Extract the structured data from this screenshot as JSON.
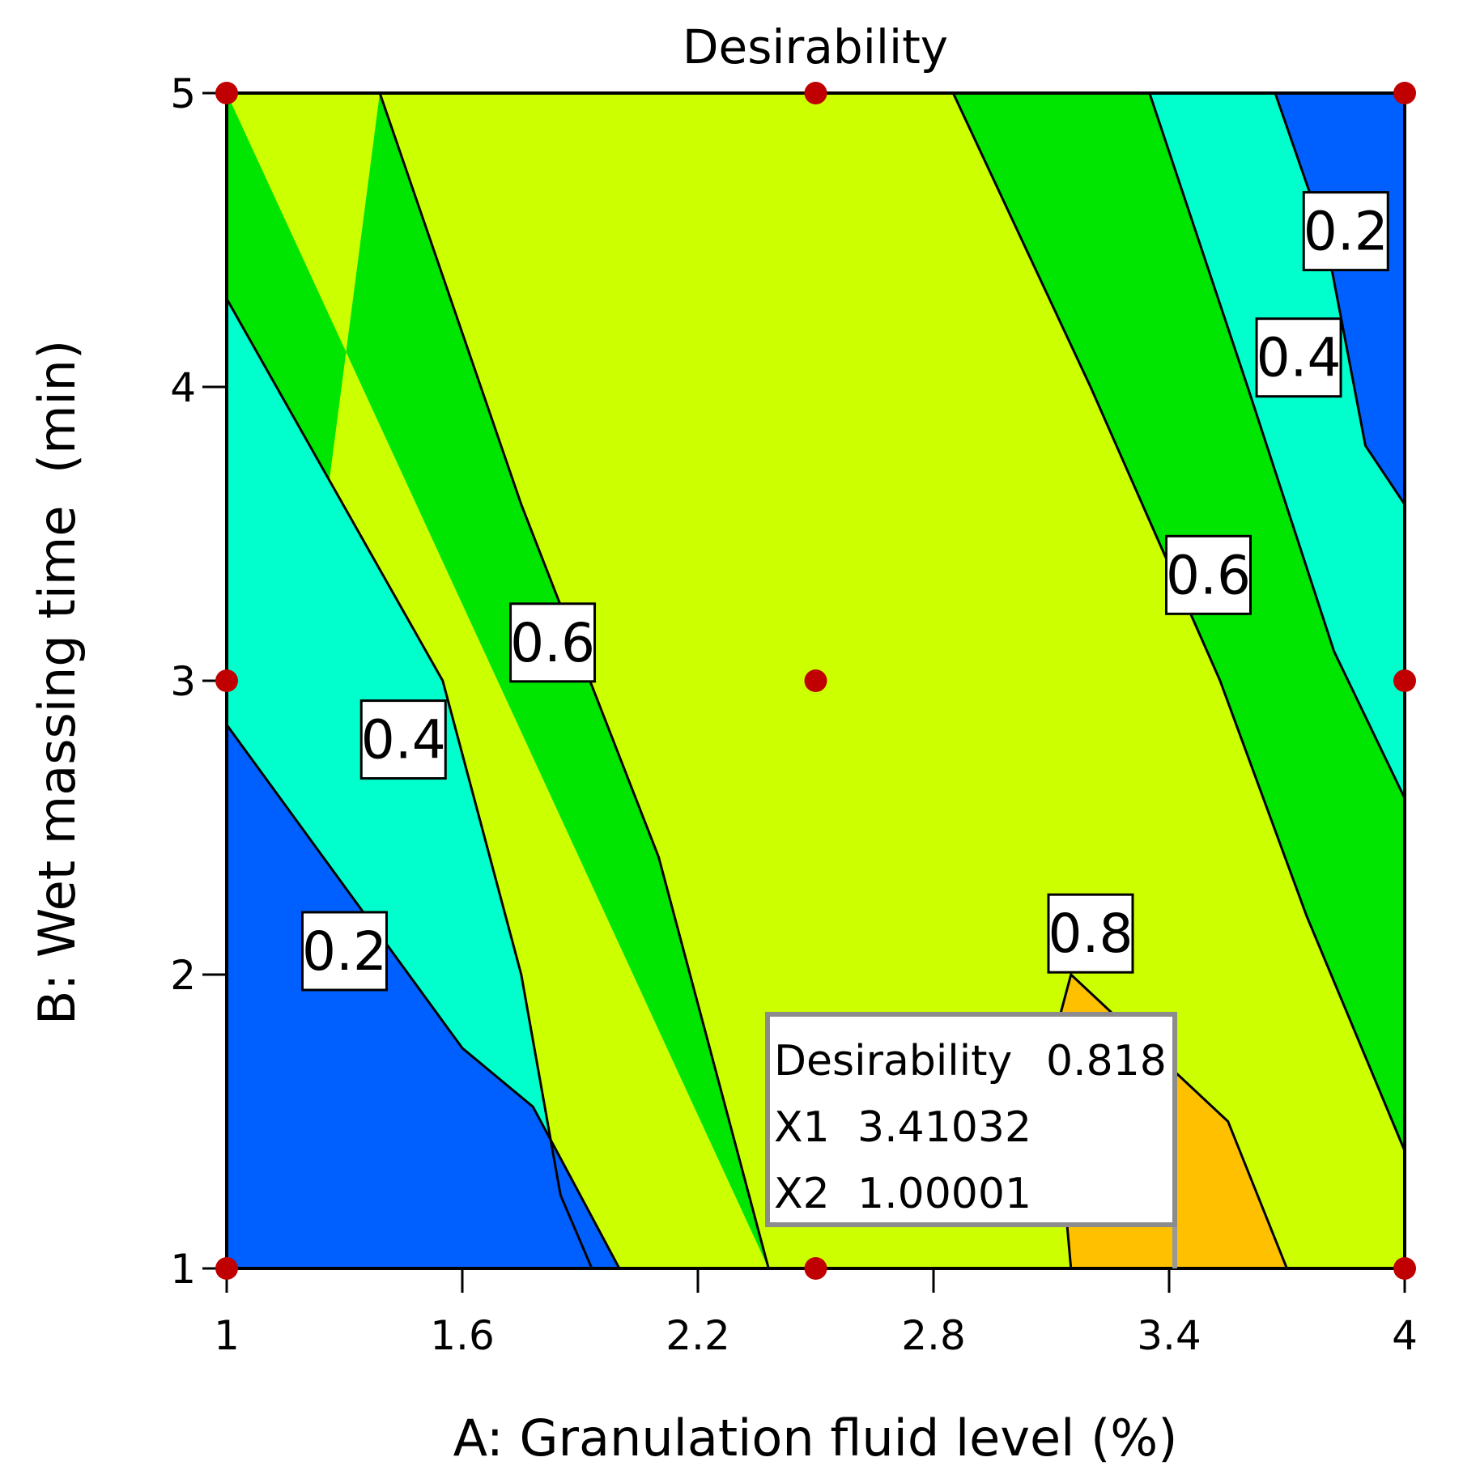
{
  "chart_data": {
    "type": "contour",
    "title": "Desirability",
    "xlabel": "A: Granulation fluid level (%)",
    "ylabel": "B: Wet massing time  (min)",
    "xlim": [
      1,
      4
    ],
    "ylim": [
      1,
      5
    ],
    "x_ticks": [
      1,
      1.6,
      2.2,
      2.8,
      3.4,
      4
    ],
    "x_tick_labels": [
      "1",
      "1.6",
      "2.2",
      "2.8",
      "3.4",
      "4"
    ],
    "y_ticks": [
      1,
      2,
      3,
      4,
      5
    ],
    "y_tick_labels": [
      "1",
      "2",
      "3",
      "4",
      "5"
    ],
    "colors": {
      "lt_0.2": "#0060ff",
      "0.2_0.4": "#00ffcc",
      "0.4_0.6": "#00e600",
      "0.6_0.8": "#ccff00",
      "gt_0.8": "#ffc000",
      "design_point": "#c00000"
    },
    "contours": [
      {
        "level": 0.2,
        "label": "0.2",
        "points": [
          [
            1,
            2.85
          ],
          [
            1.6,
            1.75
          ],
          [
            1.78,
            1.55
          ],
          [
            2.0,
            1.0
          ]
        ]
      },
      {
        "level": 0.4,
        "label": "0.4",
        "points": [
          [
            1,
            4.3
          ],
          [
            1.55,
            3.0
          ],
          [
            1.75,
            2.0
          ],
          [
            1.85,
            1.25
          ],
          [
            1.93,
            1.0
          ]
        ]
      },
      {
        "level": 0.6,
        "label": "0.6",
        "points": [
          [
            1.39,
            5.0
          ],
          [
            1.75,
            3.6
          ],
          [
            2.1,
            2.4
          ],
          [
            2.38,
            1.0
          ]
        ]
      },
      {
        "level": 0.6,
        "label": "0.6",
        "points": [
          [
            2.85,
            5.0
          ],
          [
            3.2,
            4.0
          ],
          [
            3.53,
            3.0
          ],
          [
            3.75,
            2.2
          ],
          [
            4.0,
            1.4
          ]
        ]
      },
      {
        "level": 0.4,
        "label": "0.4",
        "points": [
          [
            3.35,
            5.0
          ],
          [
            3.6,
            4.0
          ],
          [
            3.82,
            3.1
          ],
          [
            4.0,
            2.6
          ]
        ]
      },
      {
        "level": 0.2,
        "label": "0.2",
        "points": [
          [
            3.67,
            5.0
          ],
          [
            3.8,
            4.5
          ],
          [
            3.9,
            3.8
          ],
          [
            4.0,
            3.6
          ]
        ]
      },
      {
        "level": 0.8,
        "label": "0.8",
        "points": [
          [
            3.15,
            1.0
          ],
          [
            3.1,
            1.75
          ],
          [
            3.15,
            2.0
          ],
          [
            3.55,
            1.5
          ],
          [
            3.7,
            1.0
          ]
        ]
      }
    ],
    "contour_labels": [
      {
        "text": "0.2",
        "x": 1.3,
        "y": 2.08
      },
      {
        "text": "0.4",
        "x": 1.45,
        "y": 2.8
      },
      {
        "text": "0.6",
        "x": 1.83,
        "y": 3.13
      },
      {
        "text": "0.8",
        "x": 3.2,
        "y": 2.14
      },
      {
        "text": "0.6",
        "x": 3.5,
        "y": 3.36
      },
      {
        "text": "0.4",
        "x": 3.73,
        "y": 4.1
      },
      {
        "text": "0.2",
        "x": 3.85,
        "y": 4.53
      }
    ],
    "design_points": [
      {
        "x": 1,
        "y": 5
      },
      {
        "x": 2.5,
        "y": 5
      },
      {
        "x": 4,
        "y": 5
      },
      {
        "x": 1,
        "y": 3
      },
      {
        "x": 2.5,
        "y": 3
      },
      {
        "x": 4,
        "y": 3
      },
      {
        "x": 1,
        "y": 1
      },
      {
        "x": 2.5,
        "y": 1
      },
      {
        "x": 4,
        "y": 1
      }
    ],
    "optimum": {
      "x": 3.41032,
      "y": 1.00001
    },
    "tooltip": [
      {
        "key": "Desirability",
        "value": "0.818"
      },
      {
        "key": "X1",
        "value": "3.41032"
      },
      {
        "key": "X2",
        "value": "1.00001"
      }
    ]
  }
}
